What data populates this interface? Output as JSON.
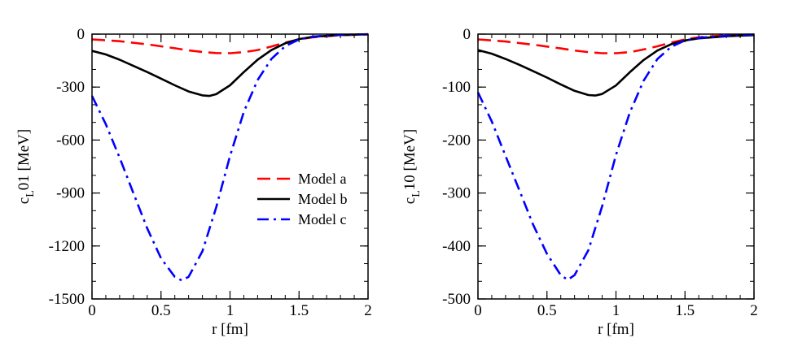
{
  "chart_data": [
    {
      "type": "line",
      "xlabel": "r [fm]",
      "ylabel_main": "c",
      "ylabel_sub": "L",
      "ylabel_rest": "01 [MeV]",
      "xlim": [
        0,
        2
      ],
      "ylim": [
        -1500,
        0
      ],
      "xticks": [
        0,
        0.5,
        1,
        1.5,
        2
      ],
      "xtick_labels": [
        "0",
        "0.5",
        "1",
        "1.5",
        "2"
      ],
      "yticks": [
        0,
        -300,
        -600,
        -900,
        -1200,
        -1500
      ],
      "ytick_labels": [
        "0",
        "-300",
        "-600",
        "-900",
        "-1200",
        "-1500"
      ],
      "legend": [
        "Model a",
        "Model b",
        "Model c"
      ],
      "series": [
        {
          "name": "Model a",
          "color": "#ff0000",
          "style": "dashed",
          "x": [
            0,
            0.2,
            0.4,
            0.6,
            0.7,
            0.8,
            0.9,
            1.0,
            1.1,
            1.2,
            1.3,
            1.4,
            1.5,
            1.6,
            1.8,
            2.0
          ],
          "y": [
            -30,
            -40,
            -58,
            -80,
            -92,
            -101,
            -107,
            -108,
            -102,
            -90,
            -70,
            -48,
            -30,
            -18,
            -6,
            -2
          ]
        },
        {
          "name": "Model b",
          "color": "#000000",
          "style": "solid",
          "x": [
            0,
            0.1,
            0.2,
            0.3,
            0.4,
            0.5,
            0.6,
            0.7,
            0.8,
            0.85,
            0.9,
            1.0,
            1.1,
            1.2,
            1.3,
            1.4,
            1.5,
            1.6,
            1.8,
            2.0
          ],
          "y": [
            -95,
            -115,
            -145,
            -180,
            -215,
            -252,
            -290,
            -325,
            -347,
            -350,
            -340,
            -290,
            -215,
            -145,
            -90,
            -52,
            -28,
            -15,
            -5,
            -1
          ]
        },
        {
          "name": "Model c",
          "color": "#0000ff",
          "style": "dashdot",
          "x": [
            0,
            0.1,
            0.2,
            0.3,
            0.4,
            0.5,
            0.6,
            0.65,
            0.7,
            0.8,
            0.9,
            1.0,
            1.1,
            1.2,
            1.3,
            1.4,
            1.5,
            1.6,
            1.8,
            2.0
          ],
          "y": [
            -350,
            -510,
            -700,
            -900,
            -1100,
            -1270,
            -1375,
            -1395,
            -1375,
            -1230,
            -980,
            -690,
            -440,
            -260,
            -140,
            -68,
            -30,
            -14,
            -4,
            -1
          ]
        }
      ]
    },
    {
      "type": "line",
      "xlabel": "r [fm]",
      "ylabel_main": "c",
      "ylabel_sub": "L",
      "ylabel_rest": "10 [MeV]",
      "xlim": [
        0,
        2
      ],
      "ylim": [
        -500,
        0
      ],
      "xticks": [
        0,
        0.5,
        1,
        1.5,
        2
      ],
      "xtick_labels": [
        "0",
        "0.5",
        "1",
        "1.5",
        "2"
      ],
      "yticks": [
        0,
        -100,
        -200,
        -300,
        -400,
        -500
      ],
      "ytick_labels": [
        "0",
        "-100",
        "-200",
        "-300",
        "-400",
        "-500"
      ],
      "series": [
        {
          "name": "Model a",
          "color": "#ff0000",
          "style": "dashed",
          "x": [
            0,
            0.2,
            0.4,
            0.6,
            0.7,
            0.8,
            0.9,
            1.0,
            1.1,
            1.2,
            1.3,
            1.4,
            1.5,
            1.6,
            1.8,
            2.0
          ],
          "y": [
            -10,
            -14,
            -20,
            -27,
            -31,
            -34,
            -36,
            -36,
            -34,
            -29,
            -23,
            -16,
            -10,
            -6,
            -2,
            -1
          ]
        },
        {
          "name": "Model b",
          "color": "#000000",
          "style": "solid",
          "x": [
            0,
            0.1,
            0.2,
            0.3,
            0.4,
            0.5,
            0.6,
            0.7,
            0.8,
            0.85,
            0.9,
            1.0,
            1.1,
            1.2,
            1.3,
            1.4,
            1.5,
            1.6,
            1.8,
            2.0
          ],
          "y": [
            -30,
            -37,
            -47,
            -58,
            -70,
            -82,
            -95,
            -107,
            -115,
            -116,
            -113,
            -97,
            -72,
            -49,
            -31,
            -19,
            -12,
            -8,
            -4,
            -2
          ]
        },
        {
          "name": "Model c",
          "color": "#0000ff",
          "style": "dashdot",
          "x": [
            0,
            0.1,
            0.2,
            0.3,
            0.4,
            0.5,
            0.6,
            0.65,
            0.7,
            0.8,
            0.9,
            1.0,
            1.1,
            1.2,
            1.3,
            1.4,
            1.5,
            1.6,
            1.8,
            2.0
          ],
          "y": [
            -110,
            -165,
            -230,
            -295,
            -360,
            -415,
            -455,
            -464,
            -455,
            -408,
            -325,
            -228,
            -148,
            -88,
            -47,
            -24,
            -12,
            -7,
            -3,
            -1
          ]
        }
      ]
    }
  ]
}
